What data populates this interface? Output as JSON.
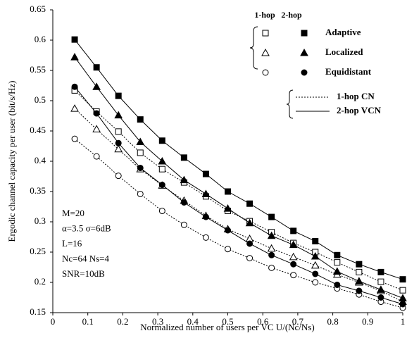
{
  "chart_data": {
    "type": "line",
    "x_label": "Normalized number of users per VC U/(Nc/Ns)",
    "y_label": "Ergodic channel capacity per user (bit/s/Hz)",
    "xlim": [
      0,
      1
    ],
    "xticks": [
      0,
      0.1,
      0.2,
      0.3,
      0.4,
      0.5,
      0.6,
      0.7,
      0.8,
      0.9,
      1
    ],
    "ylim": [
      0.15,
      0.65
    ],
    "yticks": [
      0.15,
      0.2,
      0.25,
      0.3,
      0.35,
      0.4,
      0.45,
      0.5,
      0.55,
      0.6,
      0.65
    ],
    "x": [
      0.0625,
      0.125,
      0.1875,
      0.25,
      0.3125,
      0.375,
      0.4375,
      0.5,
      0.5625,
      0.625,
      0.6875,
      0.75,
      0.8125,
      0.875,
      0.9375,
      1
    ],
    "series": [
      {
        "name": "Adaptive",
        "group": "1-hop",
        "marker": "square",
        "filled": false,
        "dashed": true,
        "color": "#000000",
        "values": [
          0.517,
          0.482,
          0.449,
          0.414,
          0.387,
          0.365,
          0.342,
          0.318,
          0.301,
          0.283,
          0.265,
          0.25,
          0.233,
          0.217,
          0.201,
          0.187
        ]
      },
      {
        "name": "Adaptive",
        "group": "2-hop",
        "marker": "square",
        "filled": true,
        "dashed": false,
        "color": "#000000",
        "values": [
          0.601,
          0.555,
          0.508,
          0.469,
          0.434,
          0.406,
          0.379,
          0.35,
          0.33,
          0.308,
          0.285,
          0.268,
          0.245,
          0.23,
          0.217,
          0.205
        ]
      },
      {
        "name": "Localized",
        "group": "1-hop",
        "marker": "triangle",
        "filled": false,
        "dashed": true,
        "color": "#000000",
        "values": [
          0.487,
          0.453,
          0.42,
          0.387,
          0.36,
          0.335,
          0.31,
          0.288,
          0.272,
          0.256,
          0.242,
          0.228,
          0.213,
          0.2,
          0.186,
          0.168
        ]
      },
      {
        "name": "Localized",
        "group": "2-hop",
        "marker": "triangle",
        "filled": true,
        "dashed": false,
        "color": "#000000",
        "values": [
          0.572,
          0.523,
          0.476,
          0.432,
          0.4,
          0.369,
          0.346,
          0.322,
          0.298,
          0.277,
          0.262,
          0.243,
          0.218,
          0.202,
          0.188,
          0.174
        ]
      },
      {
        "name": "Equidistant",
        "group": "1-hop",
        "marker": "circle",
        "filled": false,
        "dashed": true,
        "color": "#000000",
        "values": [
          0.437,
          0.408,
          0.376,
          0.346,
          0.318,
          0.295,
          0.274,
          0.255,
          0.24,
          0.224,
          0.212,
          0.2,
          0.19,
          0.18,
          0.168,
          0.158
        ]
      },
      {
        "name": "Equidistant",
        "group": "2-hop",
        "marker": "circle",
        "filled": true,
        "dashed": false,
        "color": "#000000",
        "values": [
          0.523,
          0.479,
          0.43,
          0.389,
          0.361,
          0.332,
          0.308,
          0.286,
          0.264,
          0.245,
          0.23,
          0.214,
          0.196,
          0.186,
          0.175,
          0.164
        ]
      }
    ],
    "legend_lines": [
      {
        "label": "1-hop CN",
        "dashed": true
      },
      {
        "label": "2-hop VCN",
        "dashed": false
      }
    ],
    "annotations": [
      "M=20",
      "α=3.5 σ=6dB",
      "L=16",
      "Nc=64 Ns=4",
      "SNR=10dB"
    ]
  }
}
